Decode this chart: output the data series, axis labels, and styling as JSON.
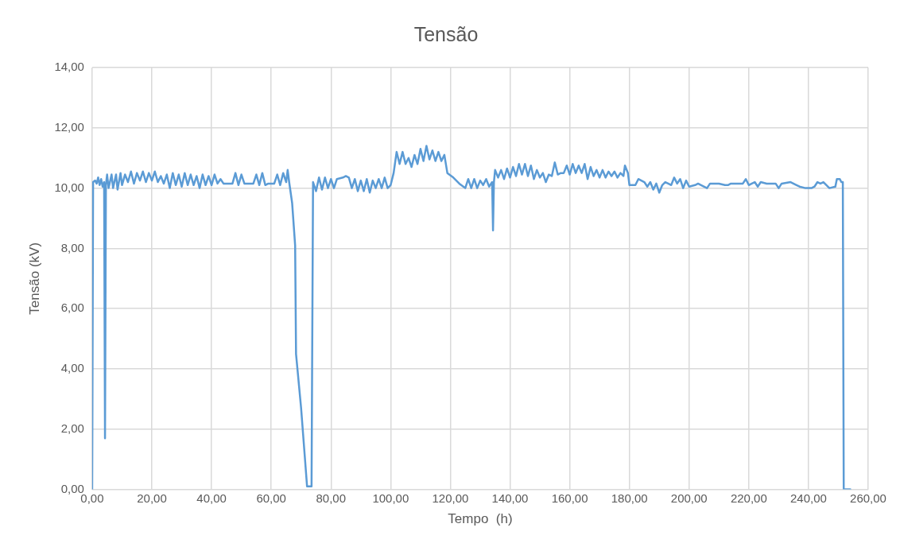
{
  "chart_data": {
    "type": "line",
    "title": "Tensão",
    "xlabel": "Tempo  (h)",
    "ylabel": "Tensão (kV)",
    "grid": true,
    "legend": false,
    "marker": "none",
    "line_style": "solid",
    "xlim": [
      0,
      260
    ],
    "ylim": [
      0,
      14
    ],
    "xticks": [
      {
        "value": 0,
        "label": "0,00"
      },
      {
        "value": 20,
        "label": "20,00"
      },
      {
        "value": 40,
        "label": "40,00"
      },
      {
        "value": 60,
        "label": "60,00"
      },
      {
        "value": 80,
        "label": "80,00"
      },
      {
        "value": 100,
        "label": "100,00"
      },
      {
        "value": 120,
        "label": "120,00"
      },
      {
        "value": 140,
        "label": "140,00"
      },
      {
        "value": 160,
        "label": "160,00"
      },
      {
        "value": 180,
        "label": "180,00"
      },
      {
        "value": 200,
        "label": "200,00"
      },
      {
        "value": 220,
        "label": "220,00"
      },
      {
        "value": 240,
        "label": "240,00"
      },
      {
        "value": 260,
        "label": "260,00"
      }
    ],
    "yticks": [
      {
        "value": 0,
        "label": "0,00"
      },
      {
        "value": 2,
        "label": "2,00"
      },
      {
        "value": 4,
        "label": "4,00"
      },
      {
        "value": 6,
        "label": "6,00"
      },
      {
        "value": 8,
        "label": "8,00"
      },
      {
        "value": 10,
        "label": "10,00"
      },
      {
        "value": 12,
        "label": "12,00"
      },
      {
        "value": 14,
        "label": "14,00"
      }
    ],
    "x": [
      0,
      0.3,
      1,
      1.5,
      2,
      2.5,
      3,
      3.5,
      4,
      4.3,
      4.6,
      5,
      5.5,
      6.5,
      7,
      8,
      8.5,
      9.5,
      10,
      11,
      12,
      13,
      14,
      15,
      16,
      17,
      18,
      19,
      20,
      21,
      22,
      23,
      24,
      25,
      26,
      27,
      28,
      29,
      30,
      31,
      32,
      33,
      34,
      35,
      36,
      37,
      38,
      39,
      40,
      41,
      42,
      43,
      44,
      47,
      48,
      49,
      50,
      51,
      52,
      54,
      55,
      56,
      57,
      58,
      59,
      61,
      62,
      63,
      64,
      65,
      65.5,
      66,
      67,
      68,
      68.3,
      70,
      72,
      73.5,
      74,
      75,
      76,
      77,
      78,
      79,
      80,
      81,
      82,
      84,
      85,
      86,
      87,
      88,
      89,
      90,
      91,
      92,
      93,
      94,
      95,
      96,
      97,
      98,
      99,
      100,
      101,
      102,
      103,
      104,
      105,
      106,
      107,
      108,
      109,
      110,
      111,
      112,
      113,
      114,
      115,
      116,
      117,
      118,
      119,
      121,
      123,
      125,
      126,
      127,
      128,
      129,
      130,
      131,
      132,
      133,
      134,
      134.3,
      134.6,
      135,
      136,
      137,
      138,
      139,
      140,
      141,
      142,
      143,
      144,
      145,
      146,
      147,
      148,
      149,
      150,
      151,
      152,
      153,
      154,
      155,
      156,
      157,
      158,
      159,
      160,
      161,
      162,
      163,
      164,
      165,
      166,
      167,
      168,
      169,
      170,
      171,
      172,
      173,
      174,
      175,
      176,
      177,
      178,
      178.5,
      179.5,
      180,
      182,
      183,
      185,
      186,
      187,
      188,
      189,
      190,
      191,
      192,
      193,
      194,
      195,
      196,
      197,
      198,
      199,
      200,
      202,
      203,
      204,
      206,
      207,
      210,
      212,
      213,
      214,
      218,
      219,
      220,
      221,
      222,
      223,
      224,
      226,
      229,
      230,
      231,
      234,
      236,
      237,
      239,
      241,
      242,
      243,
      244,
      245,
      246,
      247,
      249,
      249.5,
      250.5,
      251,
      251.5,
      251.8,
      254
    ],
    "series": [
      {
        "color": "#5b9bd5",
        "values": [
          0,
          10.2,
          10.25,
          10.15,
          10.35,
          10.1,
          10.3,
          10.05,
          10.2,
          1.7,
          10.1,
          10.45,
          10.0,
          10.45,
          10.0,
          10.45,
          9.95,
          10.5,
          10.1,
          10.45,
          10.2,
          10.55,
          10.15,
          10.5,
          10.25,
          10.55,
          10.2,
          10.5,
          10.25,
          10.55,
          10.2,
          10.4,
          10.15,
          10.45,
          10.0,
          10.5,
          10.1,
          10.45,
          10.05,
          10.5,
          10.1,
          10.45,
          10.1,
          10.4,
          10.0,
          10.45,
          10.1,
          10.4,
          10.1,
          10.45,
          10.15,
          10.3,
          10.15,
          10.15,
          10.5,
          10.1,
          10.45,
          10.15,
          10.15,
          10.15,
          10.45,
          10.1,
          10.5,
          10.1,
          10.15,
          10.15,
          10.45,
          10.1,
          10.5,
          10.2,
          10.6,
          10.2,
          9.5,
          8.1,
          4.5,
          2.7,
          0.1,
          0.1,
          10.2,
          9.9,
          10.35,
          9.95,
          10.35,
          10.0,
          10.3,
          10.0,
          10.3,
          10.35,
          10.4,
          10.35,
          10.0,
          10.3,
          9.9,
          10.25,
          9.9,
          10.3,
          9.85,
          10.25,
          10.0,
          10.3,
          10.0,
          10.35,
          10.0,
          10.1,
          10.5,
          11.2,
          10.8,
          11.2,
          10.8,
          11.0,
          10.7,
          11.1,
          10.8,
          11.3,
          10.9,
          11.4,
          10.95,
          11.25,
          10.9,
          11.2,
          10.9,
          11.1,
          10.5,
          10.35,
          10.15,
          10.0,
          10.3,
          10.0,
          10.3,
          10.0,
          10.25,
          10.1,
          10.3,
          10.05,
          10.2,
          8.6,
          10.2,
          10.6,
          10.35,
          10.6,
          10.3,
          10.65,
          10.35,
          10.7,
          10.4,
          10.8,
          10.45,
          10.8,
          10.4,
          10.75,
          10.3,
          10.6,
          10.35,
          10.5,
          10.2,
          10.45,
          10.4,
          10.85,
          10.45,
          10.5,
          10.5,
          10.75,
          10.45,
          10.8,
          10.5,
          10.75,
          10.5,
          10.8,
          10.3,
          10.7,
          10.4,
          10.6,
          10.35,
          10.6,
          10.35,
          10.55,
          10.4,
          10.55,
          10.35,
          10.5,
          10.4,
          10.75,
          10.5,
          10.1,
          10.1,
          10.3,
          10.2,
          10.05,
          10.2,
          9.95,
          10.15,
          9.85,
          10.1,
          10.2,
          10.15,
          10.1,
          10.35,
          10.15,
          10.3,
          10.0,
          10.25,
          10.05,
          10.1,
          10.15,
          10.1,
          10.0,
          10.15,
          10.15,
          10.1,
          10.1,
          10.15,
          10.15,
          10.3,
          10.1,
          10.15,
          10.2,
          10.05,
          10.2,
          10.15,
          10.15,
          10.0,
          10.15,
          10.2,
          10.1,
          10.05,
          10.0,
          10.0,
          10.05,
          10.2,
          10.15,
          10.2,
          10.1,
          10.0,
          10.05,
          10.3,
          10.3,
          10.2,
          10.2,
          0,
          0
        ]
      }
    ]
  }
}
